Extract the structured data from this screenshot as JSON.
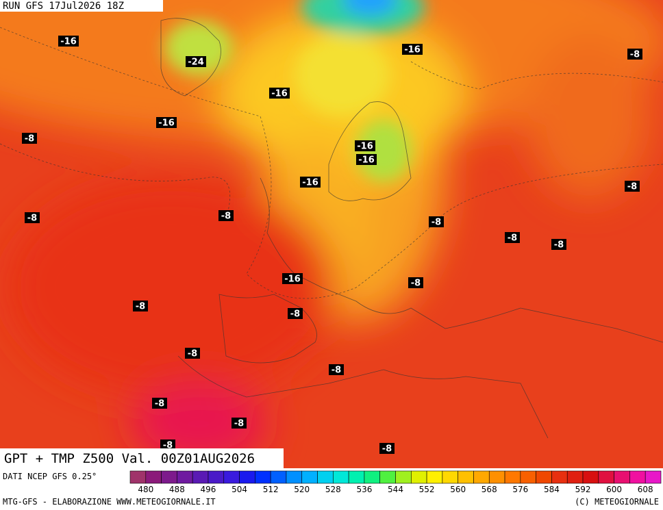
{
  "header": {
    "run": "RUN GFS 17Jul2026 18Z"
  },
  "map": {
    "labels": [
      "-16",
      "-24",
      "-16",
      "-8",
      "-16",
      "-16",
      "-8",
      "-16",
      "-16",
      "-8",
      "-16",
      "-8",
      "-8",
      "-8",
      "-8",
      "-8",
      "-16",
      "-8",
      "-8",
      "-8",
      "-8",
      "-8",
      "-8",
      "-8",
      "-8",
      "-8"
    ]
  },
  "title": "GPT + TMP Z500 Val. 00Z01AUG2026",
  "source": "DATI NCEP GFS 0.25°",
  "colorbar": {
    "labels": [
      "480",
      "488",
      "496",
      "504",
      "512",
      "520",
      "528",
      "536",
      "544",
      "552",
      "560",
      "568",
      "576",
      "584",
      "592",
      "600",
      "608"
    ],
    "colors": [
      "#a0336a",
      "#8b1a7a",
      "#7d1a8c",
      "#6f1aa0",
      "#5a1ab4",
      "#4a1ac8",
      "#3a1ade",
      "#1a1aee",
      "#0030ff",
      "#0060ff",
      "#0090ff",
      "#00b0ff",
      "#00d0f0",
      "#00e8d8",
      "#00f0b0",
      "#10f080",
      "#50f040",
      "#a0f020",
      "#e0f000",
      "#fff000",
      "#ffd800",
      "#ffc000",
      "#ffa800",
      "#ff9000",
      "#ff7800",
      "#f86000",
      "#f04800",
      "#e83010",
      "#e02010",
      "#d81010",
      "#e01040",
      "#e81070",
      "#f010a0",
      "#e818c8"
    ]
  },
  "footer": {
    "left": "MTG-GFS - ELABORAZIONE WWW.METEOGIORNALE.IT",
    "right": "(C) METEOGIORNALE"
  }
}
